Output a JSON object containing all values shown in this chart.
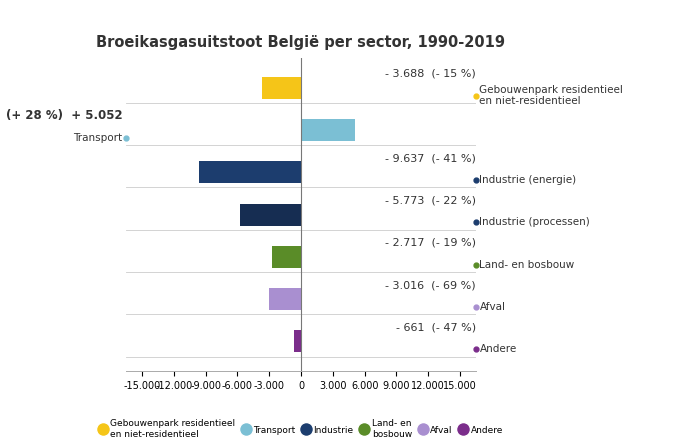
{
  "title": "Broeikasgasuitstoot België per sector, 1990-2019",
  "categories": [
    "Gebouwenpark residentieel\nen niet-residentieel",
    "Transport",
    "Industrie (energie)",
    "Industrie (processen)",
    "Land- en bosbouw",
    "Afval",
    "Andere"
  ],
  "values": [
    -3688,
    5052,
    -9637,
    -5773,
    -2717,
    -3016,
    -661
  ],
  "bar_colors": [
    "#f5c518",
    "#7bbfd4",
    "#1c3d6e",
    "#162d52",
    "#5a8c28",
    "#a98fd0",
    "#7b2d8b"
  ],
  "xlim": [
    -16500,
    16500
  ],
  "xticks": [
    -15000,
    -12000,
    -9000,
    -6000,
    -3000,
    0,
    3000,
    6000,
    9000,
    12000,
    15000
  ],
  "xtick_labels": [
    "-15.000",
    "-12.000",
    "-9.000",
    "-6.000",
    "-3.000",
    "0",
    "3.000",
    "6.000",
    "9.000",
    "12.000",
    "15.000"
  ],
  "right_annot_values": [
    "- 3.688  (- 15 %)",
    null,
    "- 9.637  (- 41 %)",
    "- 5.773  (- 22 %)",
    "- 2.717  (- 19 %)",
    "- 3.016  (- 69 %)",
    "- 661  (- 47 %)"
  ],
  "right_annot_labels": [
    "Gebouwenpark residentieel\nen niet-residentieel",
    null,
    "Industrie (energie)",
    "Industrie (processen)",
    "Land- en bosbouw",
    "Afval",
    "Andere"
  ],
  "left_annot_value": "(+ 28 %)  + 5.052",
  "left_annot_label": "Transport",
  "dot_colors": [
    "#f5c518",
    "#7bbfd4",
    "#1c3d6e",
    "#1c3d6e",
    "#5a8c28",
    "#a98fd0",
    "#7b2d8b"
  ],
  "legend_labels": [
    "Gebouwenpark residentieel\nen niet-residentieel",
    "Transport",
    "Industrie",
    "Land- en\nbosbouw",
    "Afval",
    "Andere"
  ],
  "legend_colors": [
    "#f5c518",
    "#7bbfd4",
    "#1c3d6e",
    "#5a8c28",
    "#a98fd0",
    "#7b2d8b"
  ],
  "bg_color": "#ffffff",
  "bar_height": 0.52,
  "title_fontsize": 10.5,
  "annot_fontsize": 8,
  "label_fontsize": 7.5,
  "tick_fontsize": 7
}
